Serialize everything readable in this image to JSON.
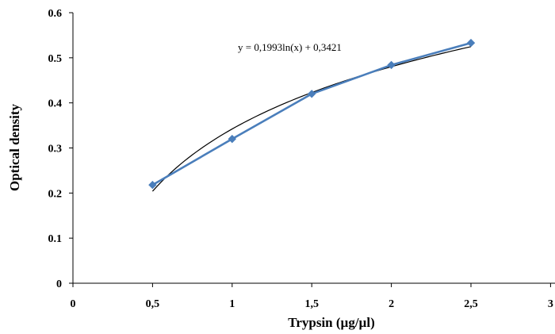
{
  "chart_data": {
    "type": "scatter",
    "title": "",
    "xlabel": "Trypsin (µg/µl)",
    "ylabel": "Optical density",
    "xlim": [
      0,
      3
    ],
    "ylim": [
      0,
      0.6
    ],
    "x_ticks": [
      "0",
      "0,5",
      "1",
      "1,5",
      "2",
      "2,5",
      "3"
    ],
    "y_ticks": [
      "0",
      "0.1",
      "0.2",
      "0.3",
      "0.4",
      "0.5",
      "0.6"
    ],
    "grid": false,
    "legend": "none",
    "series": [
      {
        "marker": "diamond",
        "line": "straight segments",
        "color": "#4a7ebb",
        "x": [
          0.5,
          1.0,
          1.5,
          2.0,
          2.5
        ],
        "y": [
          0.218,
          0.32,
          0.42,
          0.484,
          0.533
        ]
      }
    ],
    "trendline": {
      "kind": "logarithmic",
      "color": "#000000",
      "a": 0.1993,
      "b": 0.3421,
      "x_range": [
        0.5,
        2.5
      ]
    },
    "annotations": [
      {
        "text": "y = 0,1993ln(x) + 0,3421"
      }
    ]
  }
}
